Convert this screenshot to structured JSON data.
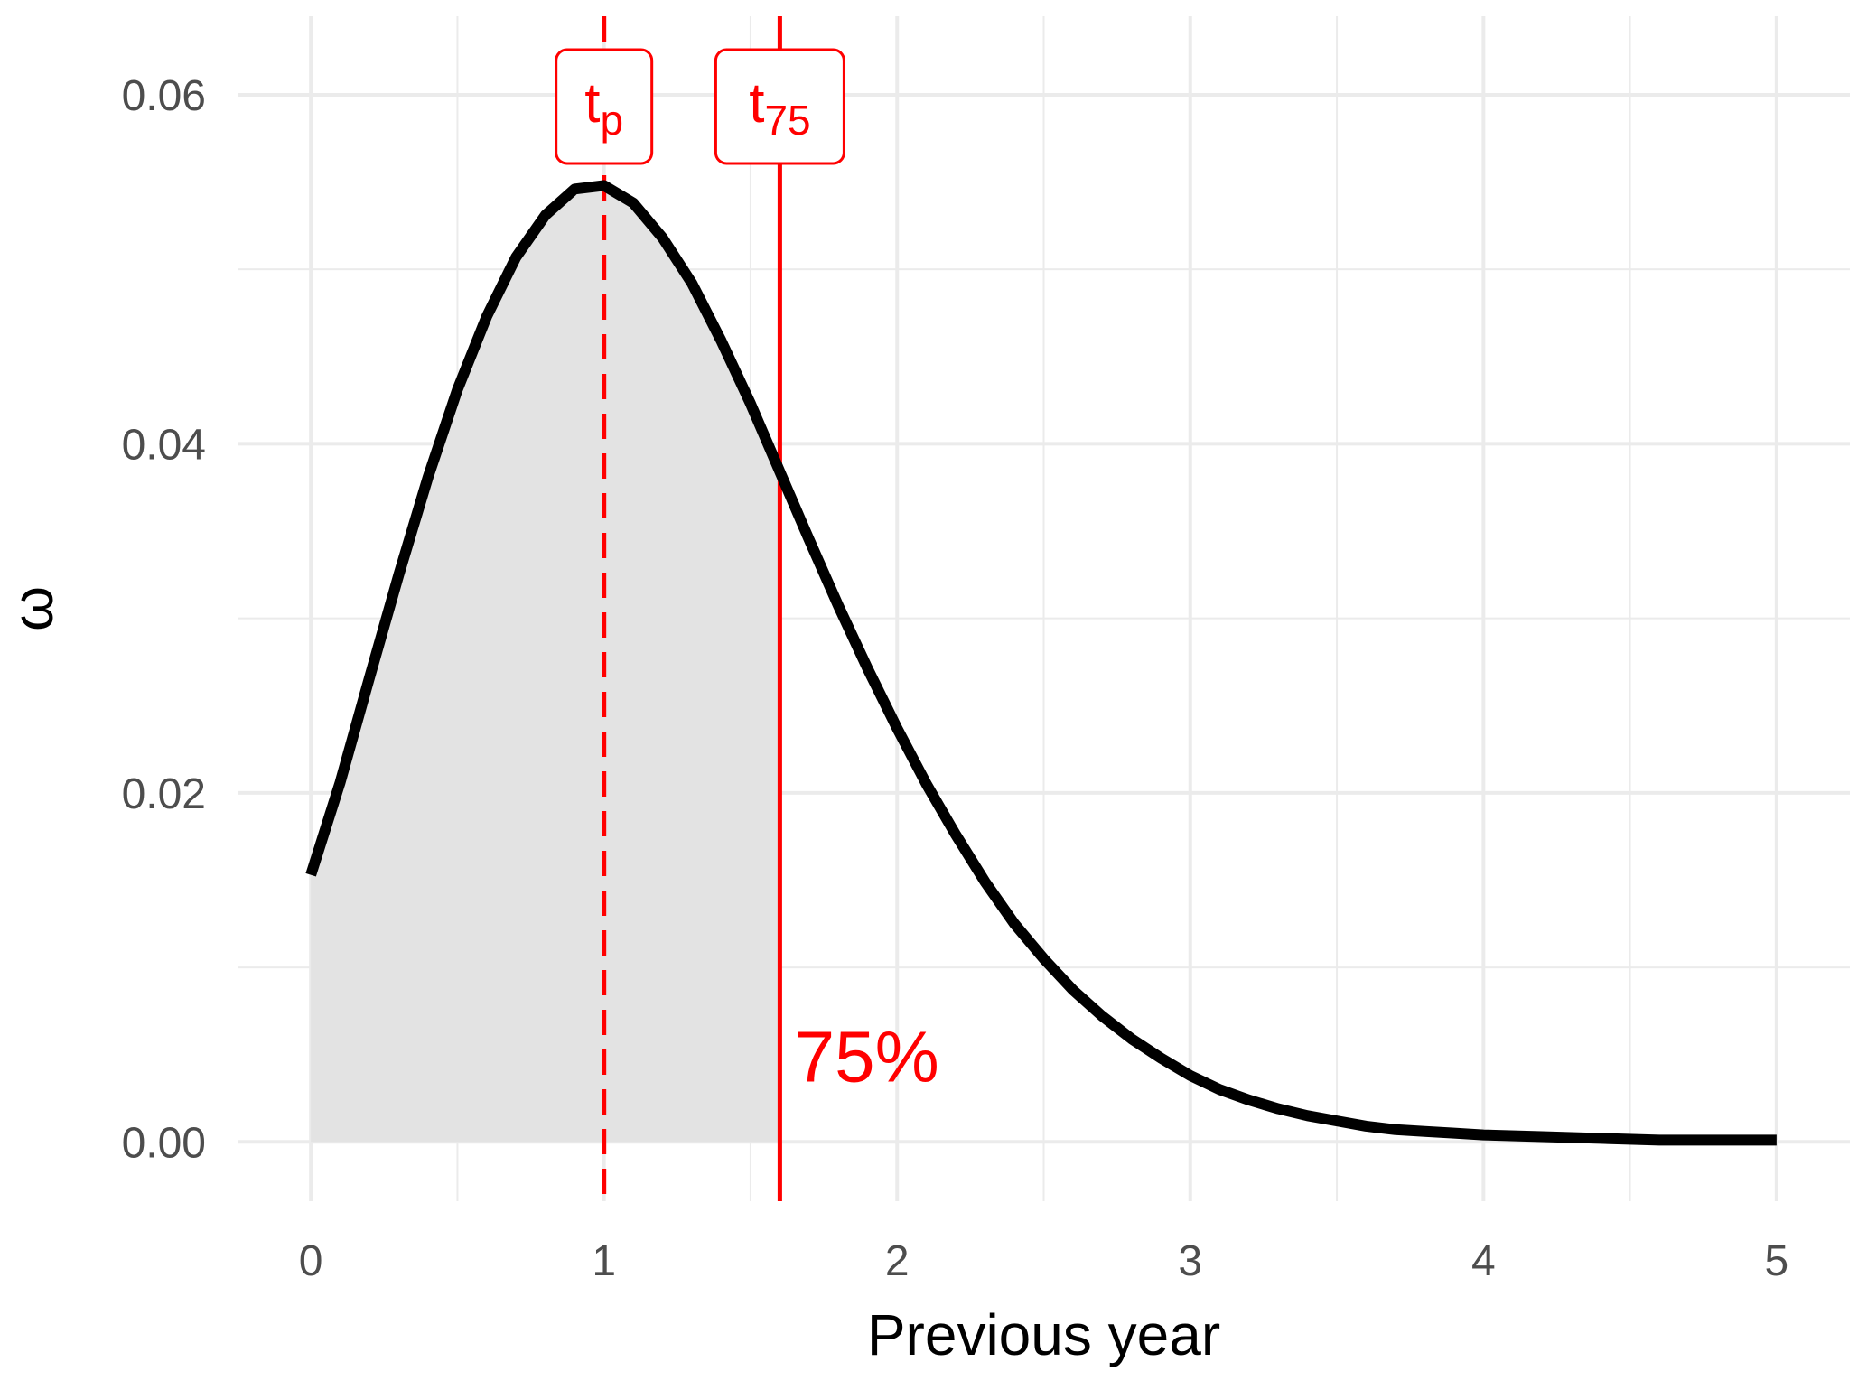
{
  "chart_data": {
    "type": "area",
    "title": "",
    "xlabel": "Previous year",
    "ylabel": "ω",
    "xlim": [
      -0.25,
      5.25
    ],
    "ylim": [
      -0.0034,
      0.0645
    ],
    "x_ticks": [
      0,
      1,
      2,
      3,
      4,
      5
    ],
    "x_tick_labels": [
      "0",
      "1",
      "2",
      "3",
      "4",
      "5"
    ],
    "x_minor_ticks": [
      0.5,
      1.5,
      2.5,
      3.5,
      4.5
    ],
    "y_ticks": [
      0.0,
      0.02,
      0.04,
      0.06
    ],
    "y_tick_labels": [
      "0.00",
      "0.02",
      "0.04",
      "0.06"
    ],
    "y_minor_ticks": [
      0.01,
      0.03,
      0.05
    ],
    "grid": true,
    "series": [
      {
        "x": [
          0,
          0.1,
          0.2,
          0.3,
          0.4,
          0.5,
          0.6,
          0.7,
          0.8,
          0.9,
          1.0,
          1.1,
          1.2,
          1.3,
          1.4,
          1.5,
          1.6,
          1.7,
          1.8,
          1.9,
          2.0,
          2.1,
          2.2,
          2.3,
          2.4,
          2.5,
          2.6,
          2.7,
          2.8,
          2.9,
          3.0,
          3.1,
          3.2,
          3.3,
          3.4,
          3.5,
          3.6,
          3.7,
          3.8,
          3.9,
          4.0,
          4.2,
          4.4,
          4.6,
          4.8,
          5.0
        ],
        "y": [
          0.0153,
          0.0206,
          0.0266,
          0.0325,
          0.0381,
          0.0431,
          0.0473,
          0.0507,
          0.0531,
          0.0546,
          0.0548,
          0.0538,
          0.0518,
          0.0492,
          0.0459,
          0.0423,
          0.0384,
          0.0345,
          0.0307,
          0.0271,
          0.0237,
          0.0205,
          0.0176,
          0.0149,
          0.0125,
          0.0105,
          0.0087,
          0.0072,
          0.0059,
          0.0048,
          0.0038,
          0.003,
          0.0024,
          0.0019,
          0.0015,
          0.0012,
          0.0009,
          0.0007,
          0.0006,
          0.0005,
          0.0004,
          0.0003,
          0.0002,
          0.0001,
          0.0001,
          0.0001
        ],
        "color": "#000000"
      }
    ],
    "shaded_region": {
      "x_from": 0,
      "x_to": 1.6,
      "color": "#e3e3e3"
    },
    "reference_lines": [
      {
        "x": 1.0,
        "style": "dashed",
        "label_main": "t",
        "label_sub": "p",
        "color": "#ff0000"
      },
      {
        "x": 1.6,
        "style": "solid",
        "label_main": "t",
        "label_sub": "75",
        "color": "#ff0000"
      }
    ],
    "annotation": {
      "text": "75%",
      "x": 1.65,
      "y": 0.0045,
      "color": "#ff0000"
    }
  }
}
